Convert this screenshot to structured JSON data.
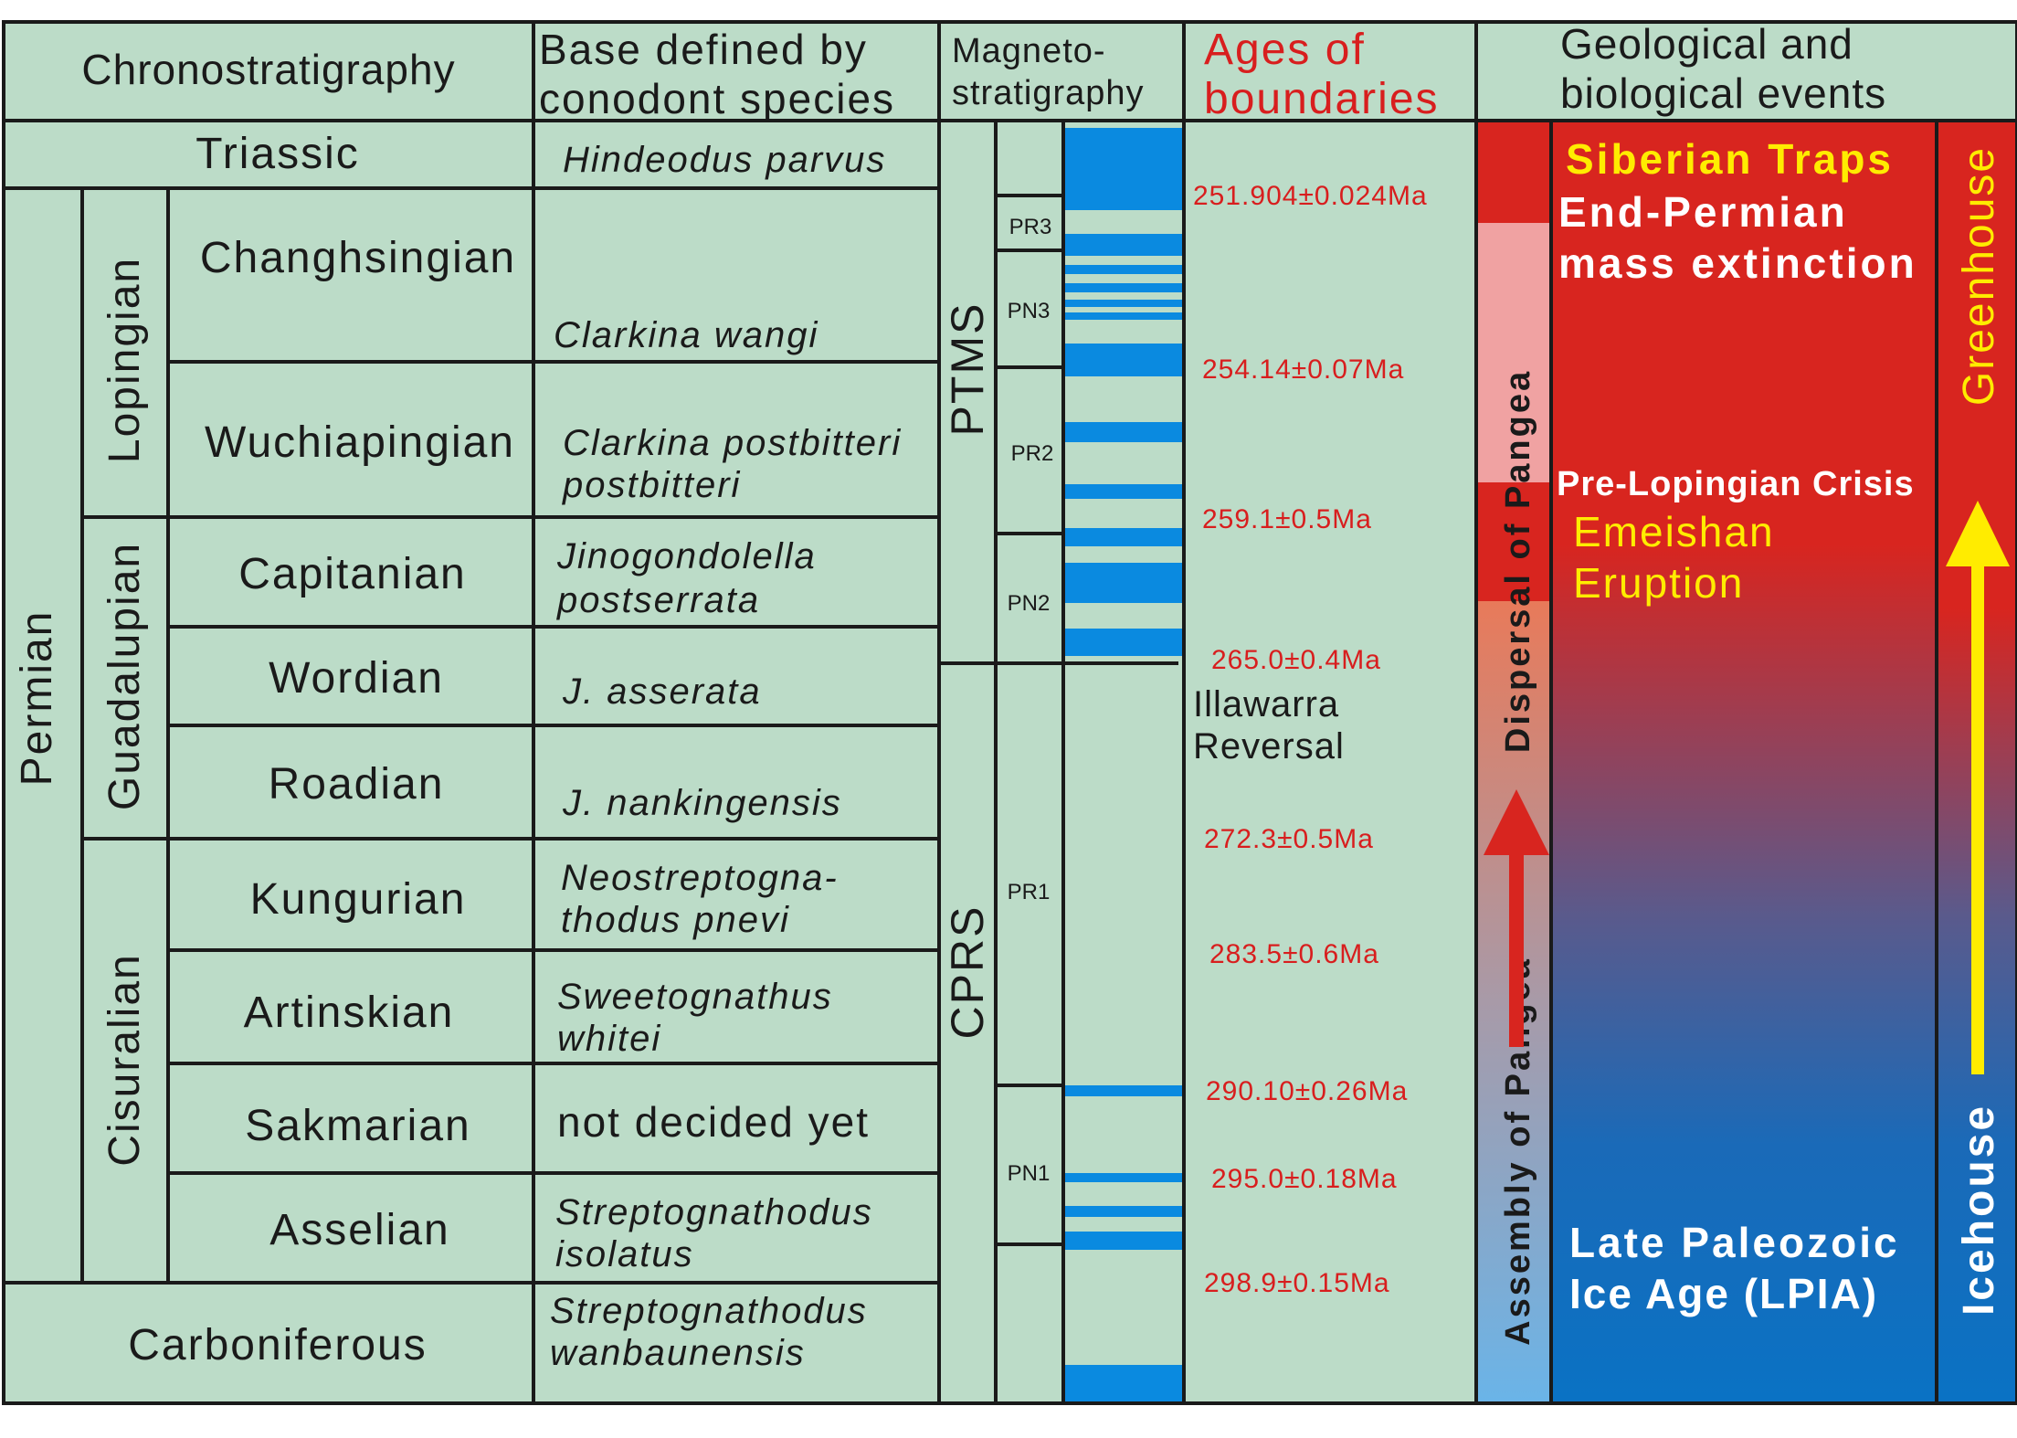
{
  "headers": {
    "chrono": "Chronostratigraphy",
    "base_line1": "Base defined by",
    "base_line2": "conodont species",
    "magneto_line1": "Magneto-",
    "magneto_line2": "stratigraphy",
    "ages_line1": "Ages of",
    "ages_line2": "boundaries",
    "events_line1": "Geological and",
    "events_line2": "biological events"
  },
  "periods": {
    "triassic": "Triassic",
    "permian": "Permian",
    "carboniferous": "Carboniferous"
  },
  "epochs": {
    "lopingian": "Lopingian",
    "guadalupian": "Guadalupian",
    "cisuralian": "Cisuralian"
  },
  "stages": [
    {
      "name": "Changhsingian",
      "conodont": [
        "",
        "Clarkina wangi"
      ]
    },
    {
      "name": "Wuchiapingian",
      "conodont": [
        "Clarkina postbitteri",
        "postbitteri"
      ]
    },
    {
      "name": "Capitanian",
      "conodont": [
        "Jinogondolella",
        "postserrata"
      ]
    },
    {
      "name": "Wordian",
      "conodont": [
        "J. asserata"
      ]
    },
    {
      "name": "Roadian",
      "conodont": [
        "J. nankingensis"
      ]
    },
    {
      "name": "Kungurian",
      "conodont": [
        "Neostreptogna-",
        "thodus pnevi"
      ]
    },
    {
      "name": "Artinskian",
      "conodont": [
        "Sweetognathus",
        "whitei"
      ]
    },
    {
      "name": "Sakmarian",
      "conodont": [
        "not decided yet"
      ]
    },
    {
      "name": "Asselian",
      "conodont": [
        "Streptognathodus",
        "isolatus"
      ]
    }
  ],
  "triassic_conodont": "Hindeodus parvus",
  "carboniferous_conodont": [
    "Streptognathodus",
    "wanbaunensis"
  ],
  "superchrons": {
    "ptms": "PTMS",
    "cprs": "CPRS"
  },
  "chrons": [
    "PR3",
    "PN3",
    "PR2",
    "PN2",
    "PR1",
    "PN1"
  ],
  "ages": [
    "251.904±0.024Ma",
    "254.14±0.07Ma",
    "259.1±0.5Ma",
    "265.0±0.4Ma",
    "272.3±0.5Ma",
    "283.5±0.6Ma",
    "290.10±0.26Ma",
    "295.0±0.18Ma",
    "298.9±0.15Ma"
  ],
  "illawarra": [
    "Illawarra",
    "Reversal"
  ],
  "pangea": {
    "dispersal": "Dispersal of Pangea",
    "assembly": "Assembly of Pangea"
  },
  "events": {
    "siberian": "Siberian Traps",
    "endpermian_line1": "End-Permian",
    "endpermian_line2": "mass extinction",
    "prelopingian": "Pre-Lopingian Crisis",
    "emeishan_line1": "Emeishan",
    "emeishan_line2": "Eruption",
    "lpia_line1": "Late Paleozoic",
    "lpia_line2": "Ice Age (LPIA)"
  },
  "climate": {
    "greenhouse": "Greenhouse",
    "icehouse": "Icehouse"
  },
  "colors": {
    "panel": "#bcdcc8",
    "line": "#1a1a1a",
    "magnetic_normal": "#0a8ae0",
    "age_text": "#d81e1e",
    "header_red": "#d81e1e",
    "event_red": "#d8251f",
    "event_blue": "#0a72c4",
    "yellow": "#ffec00",
    "arrow_red": "#d8251f"
  }
}
